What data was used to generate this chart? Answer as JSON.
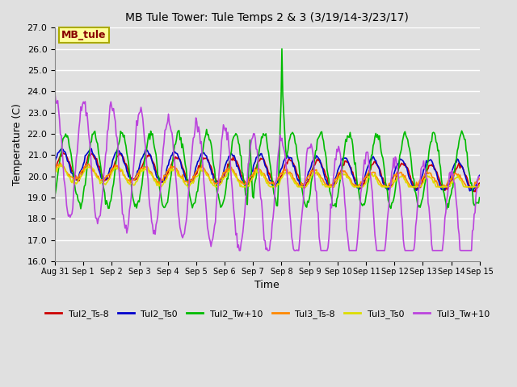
{
  "title": "MB Tule Tower: Tule Temps 2 & 3 (3/19/14-3/23/17)",
  "xlabel": "Time",
  "ylabel": "Temperature (C)",
  "ylim": [
    16.0,
    27.0
  ],
  "yticks": [
    16.0,
    17.0,
    18.0,
    19.0,
    20.0,
    21.0,
    22.0,
    23.0,
    24.0,
    25.0,
    26.0,
    27.0
  ],
  "background_color": "#e0e0e0",
  "plot_bg_color": "#e0e0e0",
  "grid_color": "#ffffff",
  "annotation_text": "MB_tule",
  "annotation_bg": "#ffff99",
  "annotation_border": "#aaaa00",
  "annotation_text_color": "#880000",
  "series_order": [
    "Tul2_Ts-8",
    "Tul2_Ts0",
    "Tul2_Tw+10",
    "Tul3_Ts-8",
    "Tul3_Ts0",
    "Tul3_Tw+10"
  ],
  "series": {
    "Tul2_Ts-8": {
      "color": "#cc0000",
      "lw": 1.2
    },
    "Tul2_Ts0": {
      "color": "#0000cc",
      "lw": 1.2
    },
    "Tul2_Tw+10": {
      "color": "#00bb00",
      "lw": 1.2
    },
    "Tul3_Ts-8": {
      "color": "#ff8800",
      "lw": 1.2
    },
    "Tul3_Ts0": {
      "color": "#dddd00",
      "lw": 1.2
    },
    "Tul3_Tw+10": {
      "color": "#bb44dd",
      "lw": 1.2
    }
  },
  "xtick_labels": [
    "Aug 31",
    "Sep 1",
    "Sep 2",
    "Sep 3",
    "Sep 4",
    "Sep 5",
    "Sep 6",
    "Sep 7",
    "Sep 8",
    "Sep 9",
    "Sep 10",
    "Sep 11",
    "Sep 12",
    "Sep 13",
    "Sep 14",
    "Sep 15"
  ],
  "figsize": [
    6.4,
    4.8
  ],
  "dpi": 100
}
